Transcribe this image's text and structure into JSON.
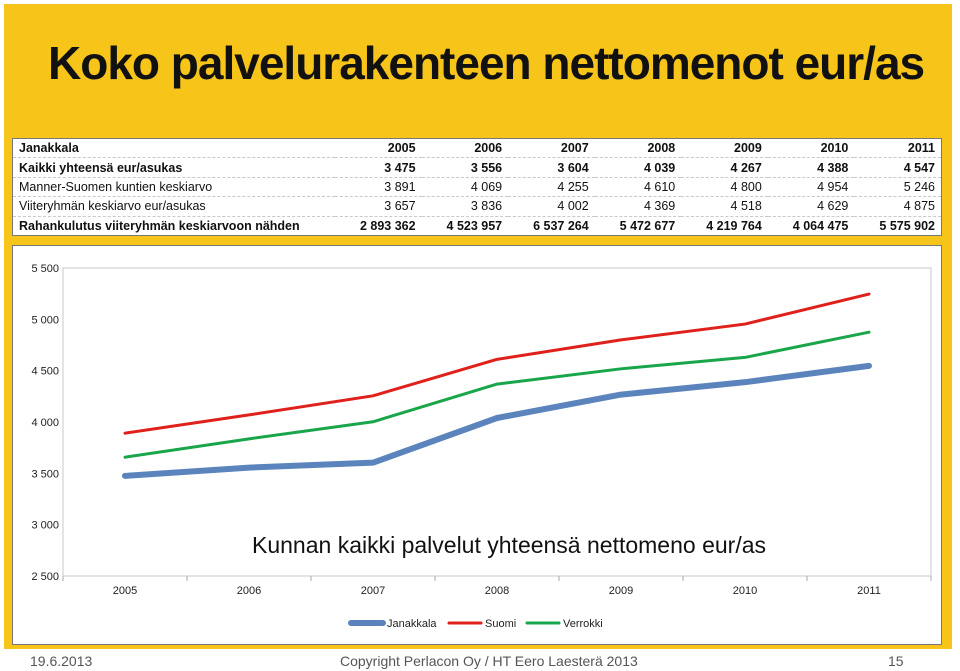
{
  "slide": {
    "title": "Koko palvelurakenteen nettomenot eur/as",
    "footer_date": "19.6.2013",
    "footer_copyright": "Copyright Perlacon Oy / HT Eero Laesterä 2013",
    "footer_page": "15"
  },
  "table": {
    "header_label": "Janakkala",
    "years": [
      "2005",
      "2006",
      "2007",
      "2008",
      "2009",
      "2010",
      "2011"
    ],
    "rows": [
      {
        "label": "Kaikki yhteensä eur/asukas",
        "values": [
          "3 475",
          "3 556",
          "3 604",
          "4 039",
          "4 267",
          "4 388",
          "4 547"
        ],
        "bold": true
      },
      {
        "label": "Manner-Suomen kuntien keskiarvo",
        "values": [
          "3 891",
          "4 069",
          "4 255",
          "4 610",
          "4 800",
          "4 954",
          "5 246"
        ],
        "bold": false
      },
      {
        "label": "Viiteryhmän keskiarvo eur/asukas",
        "values": [
          "3 657",
          "3 836",
          "4 002",
          "4 369",
          "4 518",
          "4 629",
          "4 875"
        ],
        "bold": false
      },
      {
        "label": "Rahankulutus viiteryhmän keskiarvoon nähden",
        "values": [
          "2 893 362",
          "4 523 957",
          "6 537 264",
          "5 472 677",
          "4 219 764",
          "4 064 475",
          "5 575 902"
        ],
        "bold": true
      }
    ]
  },
  "chart_data": {
    "type": "line",
    "title": "Kunnan kaikki palvelut yhteensä nettomeno eur/as",
    "categories": [
      "2005",
      "2006",
      "2007",
      "2008",
      "2009",
      "2010",
      "2011"
    ],
    "ylim": [
      2500,
      5500
    ],
    "yticks": [
      2500,
      3000,
      3500,
      4000,
      4500,
      5000,
      5500
    ],
    "ytick_labels": [
      "2 500",
      "3 000",
      "3 500",
      "4 000",
      "4 500",
      "5 000",
      "5 500"
    ],
    "grid": false,
    "legend_position": "bottom",
    "series": [
      {
        "name": "Janakkala",
        "values": [
          3475,
          3556,
          3604,
          4039,
          4267,
          4388,
          4547
        ],
        "color": "#5b84bd"
      },
      {
        "name": "Suomi",
        "values": [
          3891,
          4069,
          4255,
          4610,
          4800,
          4954,
          5246
        ],
        "color": "#e0201b"
      },
      {
        "name": "Verrokki",
        "values": [
          3657,
          3836,
          4002,
          4369,
          4518,
          4629,
          4875
        ],
        "color": "#19a64a"
      }
    ]
  }
}
